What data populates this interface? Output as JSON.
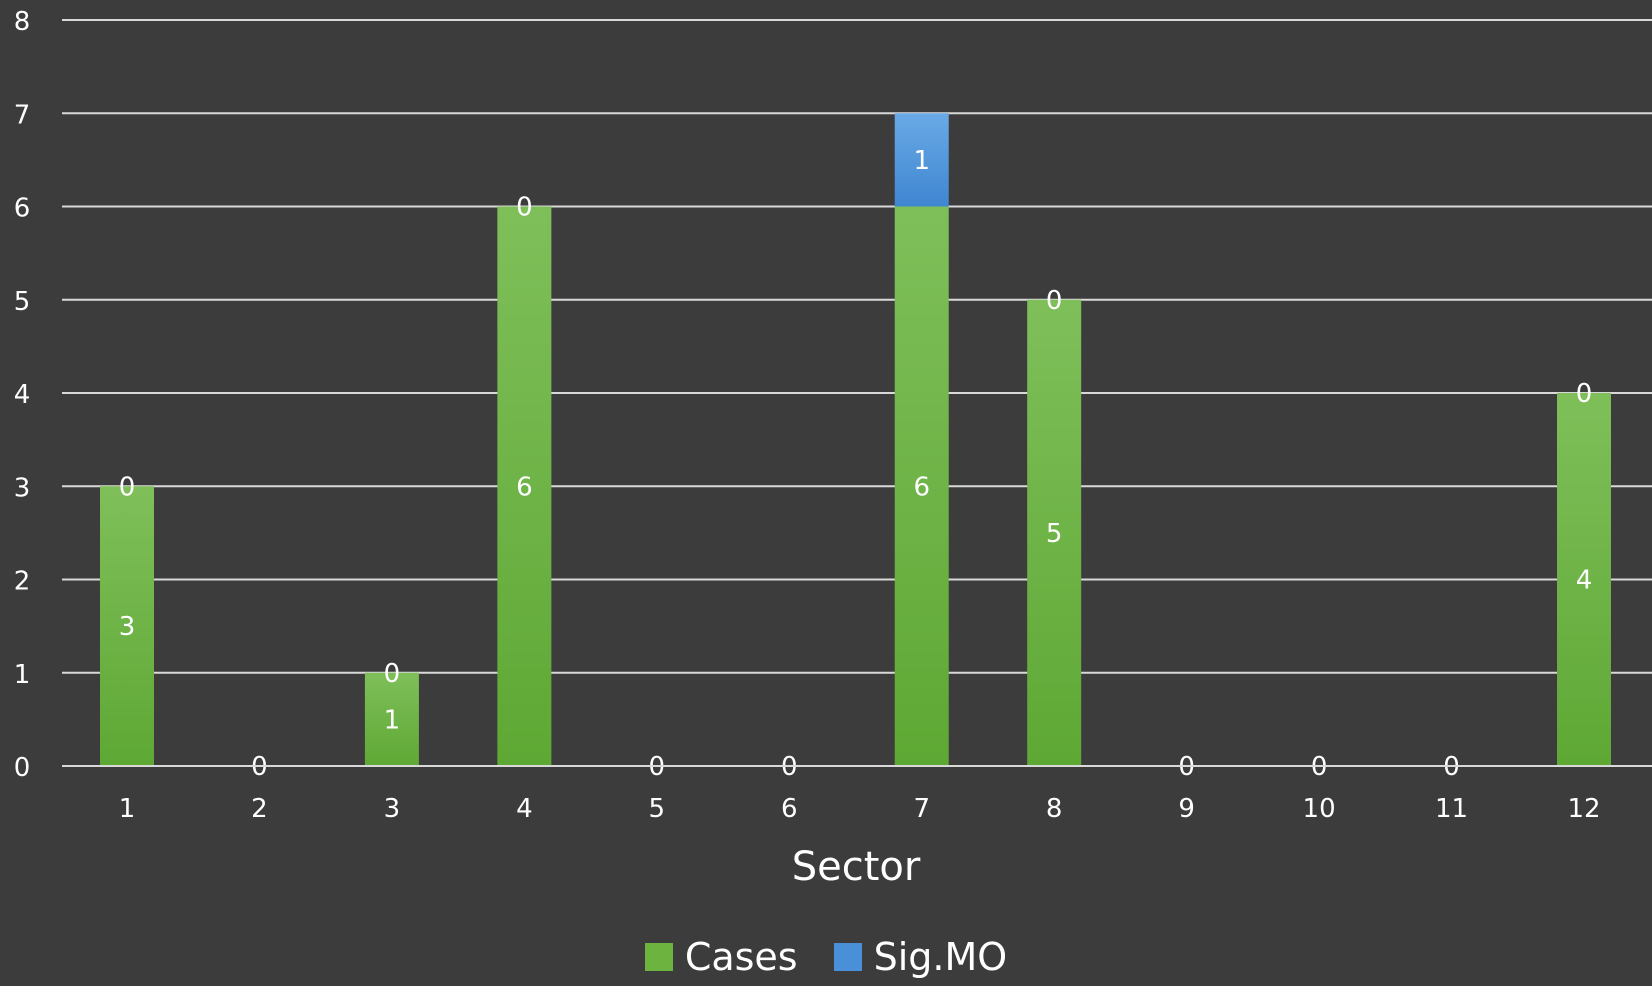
{
  "chart_data": {
    "type": "bar",
    "stacked": true,
    "categories": [
      "1",
      "2",
      "3",
      "4",
      "5",
      "6",
      "7",
      "8",
      "9",
      "10",
      "11",
      "12"
    ],
    "series": [
      {
        "name": "Cases",
        "values": [
          3,
          0,
          1,
          6,
          0,
          0,
          6,
          5,
          0,
          0,
          0,
          4
        ],
        "color": "#6db33f"
      },
      {
        "name": "Sig.MO",
        "values": [
          0,
          0,
          0,
          0,
          0,
          0,
          1,
          0,
          0,
          0,
          0,
          0
        ],
        "color": "#4a90d9"
      }
    ],
    "title": "",
    "xlabel": "Sector",
    "ylabel": "",
    "ylim": [
      0,
      8
    ],
    "yticks": [
      "0",
      "1",
      "2",
      "3",
      "4",
      "5",
      "6",
      "7",
      "8"
    ],
    "grid": true,
    "legend_position": "bottom",
    "background": "#3c3c3c",
    "gridline_color": "#d9d9d9",
    "text_color": "#ffffff"
  }
}
